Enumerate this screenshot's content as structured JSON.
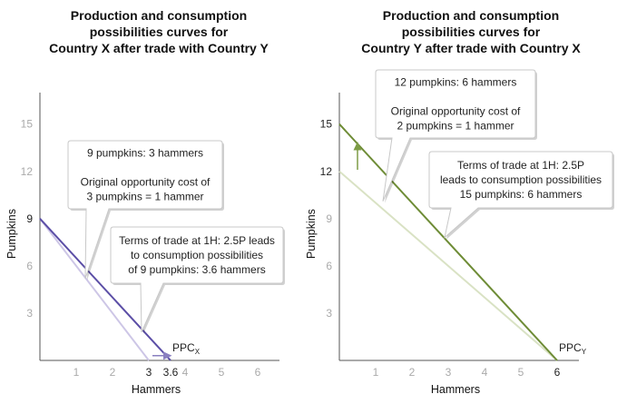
{
  "chart_data": [
    {
      "type": "line",
      "title_lines": [
        "Production and consumption",
        "possibilities curves for",
        "Country X after trade with Country Y"
      ],
      "xlabel": "Hammers",
      "ylabel": "Pumpkins",
      "xlim": [
        0,
        6.6
      ],
      "ylim": [
        0,
        17
      ],
      "x_ticks": [
        {
          "v": 1,
          "label": "1"
        },
        {
          "v": 2,
          "label": "2"
        },
        {
          "v": 3,
          "label": "3",
          "dark": true
        },
        {
          "v": 3.6,
          "label": "3.6",
          "dark": true
        },
        {
          "v": 4,
          "label": "4"
        },
        {
          "v": 5,
          "label": "5"
        },
        {
          "v": 6,
          "label": "6"
        }
      ],
      "y_ticks": [
        {
          "v": 3,
          "label": "3"
        },
        {
          "v": 6,
          "label": "6"
        },
        {
          "v": 9,
          "label": "9",
          "dark": true
        },
        {
          "v": 12,
          "label": "12"
        },
        {
          "v": 15,
          "label": "15"
        }
      ],
      "series": [
        {
          "role": "production",
          "color": "#cdc6e6",
          "points": [
            [
              0,
              9
            ],
            [
              3,
              0
            ]
          ]
        },
        {
          "role": "consumption",
          "label_main": "PPC",
          "label_sub": "X",
          "color": "#5b4ea6",
          "points": [
            [
              0,
              9
            ],
            [
              3.6,
              0
            ]
          ]
        }
      ],
      "shift_arrow": {
        "from": [
          3.1,
          0.3
        ],
        "to": [
          3.6,
          0.3
        ],
        "color": "#8a7fc0"
      },
      "callouts": [
        {
          "lines": [
            "9 pumpkins: 3 hammers",
            "",
            "Original opportunity cost of",
            "3 pumpkins = 1 hammer"
          ],
          "pointer": [
            1.25,
            5.2
          ]
        },
        {
          "lines": [
            "Terms of trade at 1H: 2.5P leads",
            "to consumption possibilities",
            "of 9 pumpkins: 3.6 hammers"
          ],
          "pointer": [
            2.8,
            1.8
          ]
        }
      ]
    },
    {
      "type": "line",
      "title_lines": [
        "Production and consumption",
        "possibilities curves for",
        "Country Y after trade with Country X"
      ],
      "xlabel": "Hammers",
      "ylabel": "Pumpkins",
      "xlim": [
        0,
        6.6
      ],
      "ylim": [
        0,
        17
      ],
      "x_ticks": [
        {
          "v": 1,
          "label": "1"
        },
        {
          "v": 2,
          "label": "2"
        },
        {
          "v": 3,
          "label": "3"
        },
        {
          "v": 4,
          "label": "4"
        },
        {
          "v": 5,
          "label": "5"
        },
        {
          "v": 6,
          "label": "6",
          "dark": true
        }
      ],
      "y_ticks": [
        {
          "v": 3,
          "label": "3"
        },
        {
          "v": 6,
          "label": "6"
        },
        {
          "v": 9,
          "label": "9"
        },
        {
          "v": 12,
          "label": "12",
          "dark": true
        },
        {
          "v": 15,
          "label": "15",
          "dark": true
        }
      ],
      "series": [
        {
          "role": "production",
          "color": "#d9e2c4",
          "points": [
            [
              0,
              12
            ],
            [
              6,
              0
            ]
          ]
        },
        {
          "role": "consumption",
          "label_main": "PPC",
          "label_sub": "Y",
          "color": "#6e8c36",
          "points": [
            [
              0,
              15
            ],
            [
              6,
              0
            ]
          ]
        }
      ],
      "shift_arrow": {
        "from": [
          0.5,
          12.1
        ],
        "to": [
          0.5,
          13.8
        ],
        "color": "#7d9c45"
      },
      "callouts": [
        {
          "lines": [
            "12 pumpkins: 6 hammers",
            "",
            "Original opportunity cost of",
            "2 pumpkins = 1 hammer"
          ],
          "pointer": [
            1.2,
            10.1
          ]
        },
        {
          "lines": [
            "Terms of trade at 1H: 2.5P",
            "leads to consumption possibilities",
            "15 pumpkins: 6 hammers"
          ],
          "pointer": [
            2.9,
            7.8
          ]
        }
      ]
    }
  ]
}
